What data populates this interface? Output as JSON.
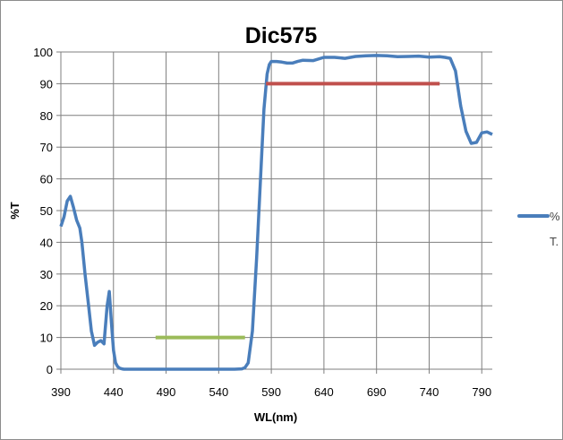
{
  "chart_data": {
    "type": "line",
    "title": "Dic575",
    "xlabel": "WL(nm)",
    "ylabel": "%T",
    "xlim": [
      390,
      800
    ],
    "ylim": [
      0,
      100
    ],
    "x_ticks": [
      "390",
      "440",
      "490",
      "540",
      "590",
      "640",
      "690",
      "740",
      "790"
    ],
    "x_tick_values": [
      390,
      440,
      490,
      540,
      590,
      640,
      690,
      740,
      790
    ],
    "y_ticks": [
      "0",
      "10",
      "20",
      "30",
      "40",
      "50",
      "60",
      "70",
      "80",
      "90",
      "100"
    ],
    "y_tick_values": [
      0,
      10,
      20,
      30,
      40,
      50,
      60,
      70,
      80,
      90,
      100
    ],
    "grid": true,
    "legend": {
      "placement": "right",
      "line1": "%",
      "line2": "T."
    },
    "colors": {
      "transmission": "#4a7ebb",
      "reflection_band": "#c0504d",
      "excitation_band": "#9bbb59"
    },
    "series": [
      {
        "name": "%T.",
        "x": [
          390,
          393,
          396,
          399,
          402,
          405,
          408,
          410,
          413,
          416,
          419,
          422,
          425,
          428,
          431,
          434,
          436,
          438,
          440,
          442,
          444,
          446,
          448,
          450,
          460,
          480,
          500,
          520,
          540,
          555,
          562,
          565,
          568,
          572,
          576,
          580,
          583,
          586,
          588,
          590,
          595,
          600,
          605,
          610,
          615,
          620,
          630,
          640,
          650,
          660,
          670,
          680,
          690,
          700,
          710,
          720,
          730,
          740,
          750,
          755,
          760,
          765,
          770,
          775,
          780,
          785,
          790,
          795,
          800
        ],
        "y": [
          45,
          48,
          53,
          54.5,
          51,
          47,
          44.5,
          40,
          30,
          21,
          12,
          7.5,
          8.5,
          9,
          8,
          20,
          24.5,
          15,
          6,
          2,
          0.8,
          0.3,
          0.1,
          0,
          0,
          0,
          0,
          0,
          0,
          0,
          0.1,
          0.5,
          2,
          12,
          35,
          62,
          82,
          93,
          96,
          97,
          97,
          96.8,
          96.5,
          96.5,
          97,
          97.4,
          97.3,
          98.3,
          98.3,
          98,
          98.6,
          98.8,
          98.9,
          98.8,
          98.5,
          98.6,
          98.7,
          98.4,
          98.5,
          98.3,
          98,
          94,
          83,
          75,
          71.2,
          71.5,
          74.5,
          74.8,
          74
        ]
      },
      {
        "name": "",
        "x": [
          585,
          750
        ],
        "y": [
          90,
          90
        ]
      },
      {
        "name": "",
        "x": [
          480,
          565
        ],
        "y": [
          10,
          10
        ]
      }
    ]
  }
}
